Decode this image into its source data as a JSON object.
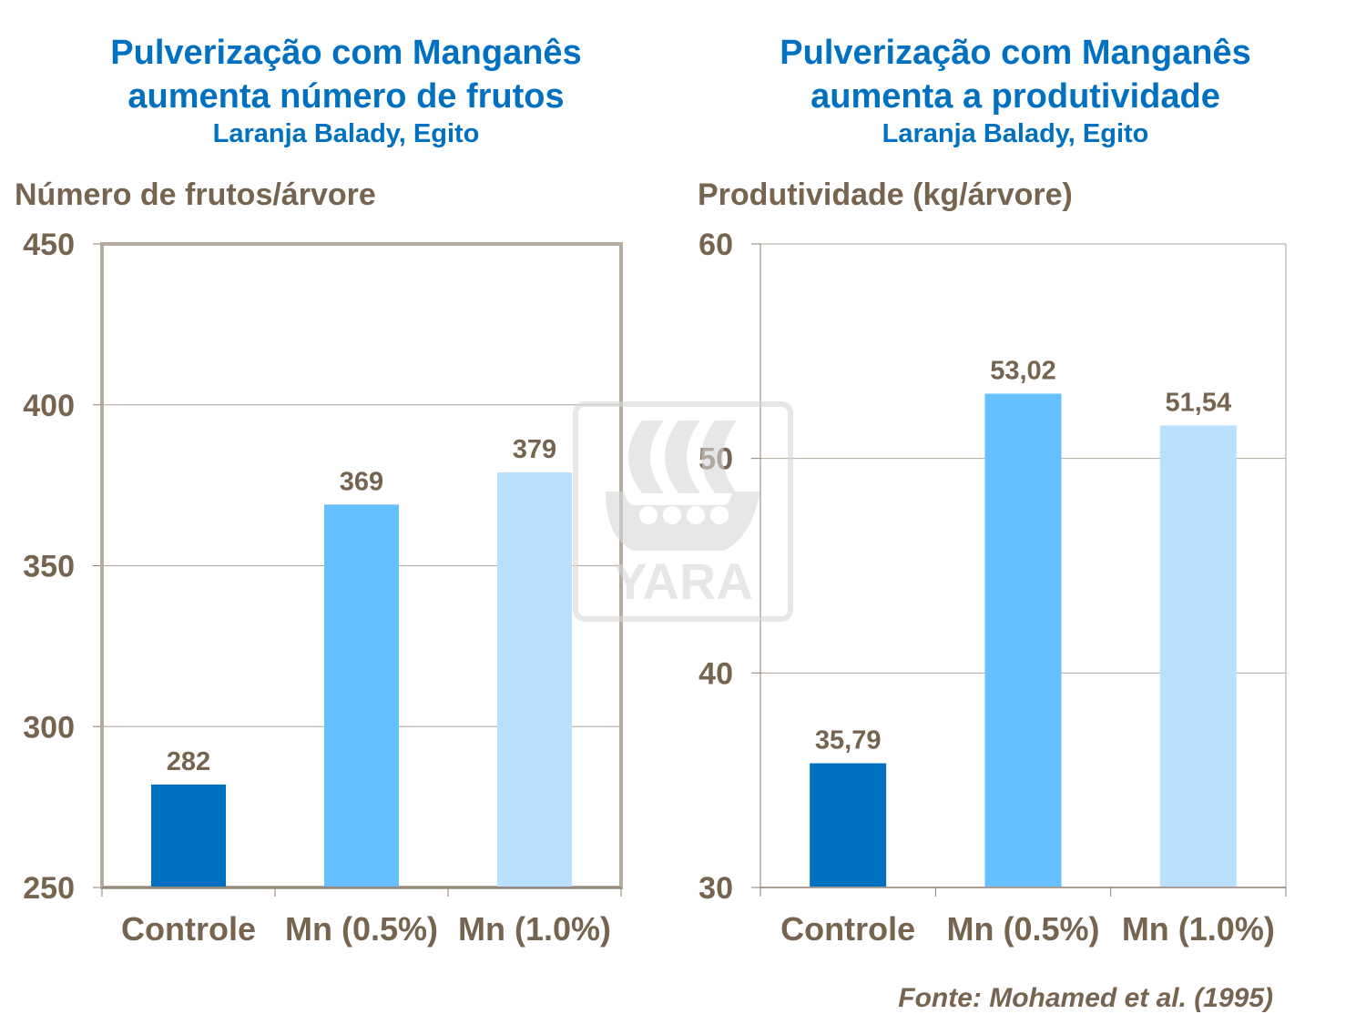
{
  "chart_data": [
    {
      "type": "bar",
      "title": "Pulverização com Manganês aumenta número de frutos",
      "title_lines": [
        "Pulverização com Manganês",
        "aumenta número de frutos"
      ],
      "subtitle": "Laranja Balady, Egito",
      "ylabel": "Número de frutos/árvore",
      "xlabel": "",
      "categories": [
        "Controle",
        "Mn (0.5%)",
        "Mn (1.0%)"
      ],
      "values": [
        282,
        369,
        379
      ],
      "data_labels": [
        "282",
        "369",
        "379"
      ],
      "colors": [
        "#0070C0",
        "#66BFFF",
        "#B9E0FF"
      ],
      "ylim": [
        250,
        450
      ],
      "yticks": [
        250,
        300,
        350,
        400,
        450
      ],
      "ytick_labels": [
        "250",
        "300",
        "350",
        "400",
        "450"
      ],
      "grid": true,
      "legend": "none"
    },
    {
      "type": "bar",
      "title": "Pulverização com Manganês aumenta a produtividade",
      "title_lines": [
        "Pulverização com Manganês",
        "aumenta a produtividade"
      ],
      "subtitle": "Laranja Balady, Egito",
      "ylabel": "Produtividade (kg/árvore)",
      "xlabel": "",
      "categories": [
        "Controle",
        "Mn (0.5%)",
        "Mn (1.0%)"
      ],
      "values": [
        35.79,
        53.02,
        51.54
      ],
      "data_labels": [
        "35,79",
        "53,02",
        "51,54"
      ],
      "colors": [
        "#0070C0",
        "#66BFFF",
        "#B9E0FF"
      ],
      "ylim": [
        30,
        60
      ],
      "yticks": [
        30,
        40,
        50,
        60
      ],
      "ytick_labels": [
        "30",
        "40",
        "50",
        "60"
      ],
      "grid": true,
      "legend": "none"
    }
  ],
  "source": "Fonte: Mohamed et al. (1995)",
  "watermark": "YARA"
}
